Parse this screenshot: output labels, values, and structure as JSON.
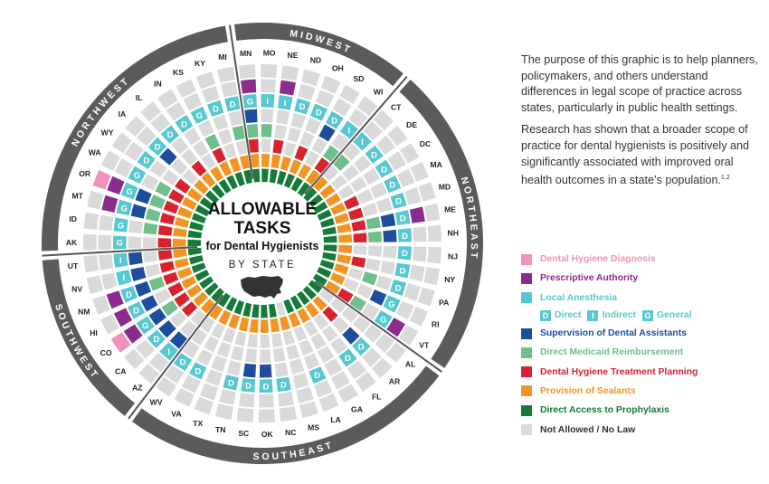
{
  "graphic": {
    "title_line1": "ALLOWABLE",
    "title_line2": "TASKS",
    "subtitle": "for Dental Hygienists",
    "by_state": "BY STATE",
    "regions": [
      {
        "name": "MIDWEST"
      },
      {
        "name": "NORTHEAST"
      },
      {
        "name": "SOUTHEAST"
      },
      {
        "name": "SOUTHWEST"
      },
      {
        "name": "NORTHWEST"
      }
    ],
    "states": [
      {
        "abbr": "MN",
        "tasks": {
          "prescriptive": true,
          "local_anesthesia": "G",
          "supervision": true,
          "medicaid": true,
          "treatment": true,
          "sealants": true,
          "prophylaxis": true
        }
      },
      {
        "abbr": "MO",
        "tasks": {
          "local_anesthesia": "I",
          "medicaid": true,
          "sealants": true,
          "prophylaxis": true
        }
      },
      {
        "abbr": "NE",
        "tasks": {
          "prescriptive": true,
          "local_anesthesia": "I",
          "treatment": true,
          "sealants": true,
          "prophylaxis": true
        }
      },
      {
        "abbr": "ND",
        "tasks": {
          "local_anesthesia": "D",
          "sealants": true,
          "prophylaxis": true
        }
      },
      {
        "abbr": "OH",
        "tasks": {
          "local_anesthesia": "D",
          "treatment": true,
          "sealants": true,
          "prophylaxis": true
        }
      },
      {
        "abbr": "SD",
        "tasks": {
          "local_anesthesia": "D",
          "supervision": true,
          "sealants": true,
          "prophylaxis": true
        }
      },
      {
        "abbr": "WI",
        "tasks": {
          "local_anesthesia": "I",
          "medicaid": true,
          "treatment": true,
          "sealants": true,
          "prophylaxis": true
        }
      },
      {
        "abbr": "CT",
        "tasks": {
          "local_anesthesia": "I",
          "medicaid": true,
          "sealants": true,
          "prophylaxis": true
        }
      },
      {
        "abbr": "DE",
        "tasks": {
          "local_anesthesia": "D",
          "sealants": true,
          "prophylaxis": true
        }
      },
      {
        "abbr": "DC",
        "tasks": {
          "local_anesthesia": "D",
          "sealants": true,
          "prophylaxis": true
        }
      },
      {
        "abbr": "MA",
        "tasks": {
          "local_anesthesia": "D",
          "treatment": true,
          "sealants": true,
          "prophylaxis": true
        }
      },
      {
        "abbr": "MD",
        "tasks": {
          "local_anesthesia": "D",
          "treatment": true,
          "sealants": true,
          "prophylaxis": true
        }
      },
      {
        "abbr": "ME",
        "tasks": {
          "prescriptive": true,
          "local_anesthesia": "D",
          "supervision": true,
          "medicaid": true,
          "treatment": true,
          "sealants": true,
          "prophylaxis": true
        }
      },
      {
        "abbr": "NH",
        "tasks": {
          "local_anesthesia": "D",
          "supervision": true,
          "medicaid": true,
          "treatment": true,
          "sealants": true,
          "prophylaxis": true
        }
      },
      {
        "abbr": "NJ",
        "tasks": {
          "local_anesthesia": "D",
          "sealants": true,
          "prophylaxis": true
        }
      },
      {
        "abbr": "NY",
        "tasks": {
          "local_anesthesia": "D",
          "treatment": true,
          "sealants": true,
          "prophylaxis": true
        }
      },
      {
        "abbr": "PA",
        "tasks": {
          "local_anesthesia": "D",
          "medicaid": true,
          "sealants": true,
          "prophylaxis": true
        }
      },
      {
        "abbr": "RI",
        "tasks": {
          "local_anesthesia": "G",
          "supervision": true,
          "sealants": true,
          "prophylaxis": true
        }
      },
      {
        "abbr": "VT",
        "tasks": {
          "prescriptive": true,
          "local_anesthesia": "G",
          "medicaid": true,
          "treatment": true,
          "sealants": true,
          "prophylaxis": true
        }
      },
      {
        "abbr": "AL",
        "tasks": {
          "prophylaxis": true
        }
      },
      {
        "abbr": "AR",
        "tasks": {
          "local_anesthesia": "D",
          "supervision": true,
          "treatment": true,
          "sealants": true,
          "prophylaxis": true
        }
      },
      {
        "abbr": "FL",
        "tasks": {
          "local_anesthesia": "D",
          "sealants": true,
          "prophylaxis": true
        }
      },
      {
        "abbr": "GA",
        "tasks": {
          "sealants": true,
          "prophylaxis": true
        }
      },
      {
        "abbr": "LA",
        "tasks": {
          "local_anesthesia": "D",
          "sealants": true,
          "prophylaxis": true
        }
      },
      {
        "abbr": "MS",
        "tasks": {
          "sealants": true
        }
      },
      {
        "abbr": "NC",
        "tasks": {
          "local_anesthesia": "D",
          "sealants": true,
          "prophylaxis": true
        }
      },
      {
        "abbr": "OK",
        "tasks": {
          "local_anesthesia": "D",
          "supervision": true,
          "sealants": true,
          "prophylaxis": true
        }
      },
      {
        "abbr": "SC",
        "tasks": {
          "local_anesthesia": "D",
          "supervision": true,
          "sealants": true,
          "prophylaxis": true
        }
      },
      {
        "abbr": "TN",
        "tasks": {
          "local_anesthesia": "D",
          "sealants": true,
          "prophylaxis": true
        }
      },
      {
        "abbr": "TX",
        "tasks": {
          "sealants": true,
          "prophylaxis": true
        }
      },
      {
        "abbr": "VA",
        "tasks": {
          "local_anesthesia": "D",
          "sealants": true,
          "prophylaxis": true
        }
      },
      {
        "abbr": "WV",
        "tasks": {
          "local_anesthesia": "D",
          "sealants": true,
          "prophylaxis": true
        }
      },
      {
        "abbr": "AZ",
        "tasks": {
          "local_anesthesia": "I",
          "supervision": true,
          "sealants": true,
          "prophylaxis": true
        }
      },
      {
        "abbr": "CA",
        "tasks": {
          "local_anesthesia": "D",
          "supervision": true,
          "treatment": true,
          "sealants": true,
          "prophylaxis": true
        }
      },
      {
        "abbr": "CO",
        "tasks": {
          "diagnosis": true,
          "prescriptive": true,
          "local_anesthesia": "G",
          "supervision": true,
          "medicaid": true,
          "treatment": true,
          "sealants": true,
          "prophylaxis": true
        }
      },
      {
        "abbr": "HI",
        "tasks": {
          "prescriptive": true,
          "local_anesthesia": "D",
          "supervision": true,
          "treatment": true,
          "sealants": true,
          "prophylaxis": true
        }
      },
      {
        "abbr": "NM",
        "tasks": {
          "prescriptive": true,
          "local_anesthesia": "D",
          "supervision": true,
          "medicaid": true,
          "treatment": true,
          "sealants": true,
          "prophylaxis": true
        }
      },
      {
        "abbr": "NV",
        "tasks": {
          "local_anesthesia": "I",
          "supervision": true,
          "treatment": true,
          "sealants": true,
          "prophylaxis": true
        }
      },
      {
        "abbr": "UT",
        "tasks": {
          "local_anesthesia": "I",
          "supervision": true,
          "treatment": true,
          "sealants": true,
          "prophylaxis": true
        }
      },
      {
        "abbr": "AK",
        "tasks": {
          "local_anesthesia": "G",
          "treatment": true,
          "sealants": true,
          "prophylaxis": true
        }
      },
      {
        "abbr": "ID",
        "tasks": {
          "local_anesthesia": "G",
          "medicaid": true,
          "treatment": true,
          "sealants": true,
          "prophylaxis": true
        }
      },
      {
        "abbr": "MT",
        "tasks": {
          "prescriptive": true,
          "local_anesthesia": "G",
          "supervision": true,
          "medicaid": true,
          "treatment": true,
          "sealants": true,
          "prophylaxis": true
        }
      },
      {
        "abbr": "OR",
        "tasks": {
          "diagnosis": true,
          "prescriptive": true,
          "local_anesthesia": "G",
          "supervision": true,
          "medicaid": true,
          "treatment": true,
          "sealants": true,
          "prophylaxis": true
        }
      },
      {
        "abbr": "WA",
        "tasks": {
          "local_anesthesia": "G",
          "medicaid": true,
          "treatment": true,
          "sealants": true,
          "prophylaxis": true
        }
      },
      {
        "abbr": "WY",
        "tasks": {
          "local_anesthesia": "D",
          "treatment": true,
          "sealants": true,
          "prophylaxis": true
        }
      },
      {
        "abbr": "IA",
        "tasks": {
          "local_anesthesia": "D",
          "supervision": true,
          "sealants": true,
          "prophylaxis": true
        }
      },
      {
        "abbr": "IL",
        "tasks": {
          "local_anesthesia": "D",
          "treatment": true,
          "sealants": true,
          "prophylaxis": true
        }
      },
      {
        "abbr": "IN",
        "tasks": {
          "local_anesthesia": "D",
          "sealants": true,
          "prophylaxis": true
        }
      },
      {
        "abbr": "KS",
        "tasks": {
          "local_anesthesia": "G",
          "medicaid": true,
          "treatment": true,
          "sealants": true,
          "prophylaxis": true
        }
      },
      {
        "abbr": "KY",
        "tasks": {
          "local_anesthesia": "D",
          "sealants": true,
          "prophylaxis": true
        }
      },
      {
        "abbr": "MI",
        "tasks": {
          "local_anesthesia": "D",
          "medicaid": true,
          "sealants": true,
          "prophylaxis": true
        }
      }
    ]
  },
  "description": {
    "p1": "The purpose of this graphic is to help planners, policymakers, and others understand differences in legal scope of practice across states, particularly in public health settings.",
    "p2": "Research has shown that a broader scope of practice for dental hygienists is positively and significantly associated with improved oral health outcomes in a state’s population.",
    "p2_sup": "1,2"
  },
  "legend": {
    "items": [
      {
        "key": "diagnosis",
        "label": "Dental Hygiene Diagnosis",
        "color": "#f091be"
      },
      {
        "key": "prescriptive",
        "label": "Prescriptive Authority",
        "color": "#8b2c8d"
      },
      {
        "key": "local_anesthesia",
        "label": "Local Anesthesia",
        "color": "#57c8cf"
      },
      {
        "key": "supervision",
        "label": "Supervision of Dental Assistants",
        "color": "#1f4d9e"
      },
      {
        "key": "medicaid",
        "label": "Direct Medicaid Reimbursement",
        "color": "#6fbf8b"
      },
      {
        "key": "treatment",
        "label": "Dental Hygiene Treatment Planning",
        "color": "#d8232f"
      },
      {
        "key": "sealants",
        "label": "Provision of Sealants",
        "color": "#f39422"
      },
      {
        "key": "prophylaxis",
        "label": "Direct Access to Prophylaxis",
        "color": "#157a3a"
      },
      {
        "key": "none",
        "label": "Not Allowed / No Law",
        "color": "#dadada"
      }
    ],
    "anesthesia_sub": [
      {
        "letter": "D",
        "label": "Direct"
      },
      {
        "letter": "I",
        "label": "Indirect"
      },
      {
        "letter": "G",
        "label": "General"
      }
    ]
  }
}
